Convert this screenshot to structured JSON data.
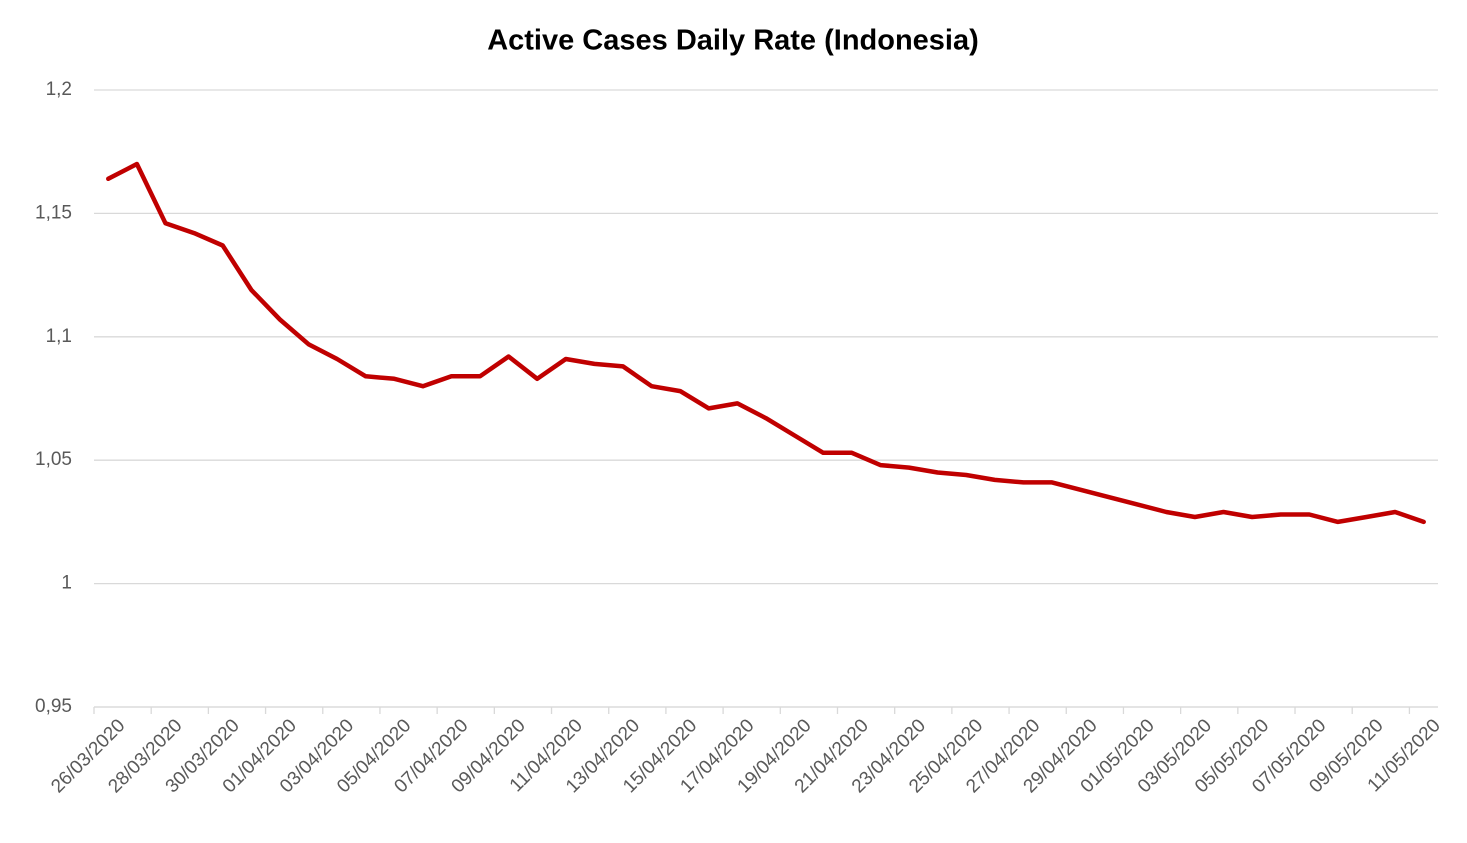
{
  "chart_data": {
    "type": "line",
    "title": "Active Cases Daily Rate (Indonesia)",
    "categories": [
      "26/03/2020",
      null,
      "28/03/2020",
      null,
      "30/03/2020",
      null,
      "01/04/2020",
      null,
      "03/04/2020",
      null,
      "05/04/2020",
      null,
      "07/04/2020",
      null,
      "09/04/2020",
      null,
      "11/04/2020",
      null,
      "13/04/2020",
      null,
      "15/04/2020",
      null,
      "17/04/2020",
      null,
      "19/04/2020",
      null,
      "21/04/2020",
      null,
      "23/04/2020",
      null,
      "25/04/2020",
      null,
      "27/04/2020",
      null,
      "29/04/2020",
      null,
      "01/05/2020",
      null,
      "03/05/2020",
      null,
      "05/05/2020",
      null,
      "07/05/2020",
      null,
      "09/05/2020",
      null,
      "11/05/2020"
    ],
    "series": [
      {
        "name": "Active Cases Daily Rate",
        "color": "#c00000",
        "values": [
          1.164,
          1.17,
          1.146,
          1.142,
          1.137,
          1.119,
          1.107,
          1.097,
          1.091,
          1.084,
          1.083,
          1.08,
          1.084,
          1.084,
          1.092,
          1.083,
          1.091,
          1.089,
          1.088,
          1.08,
          1.078,
          1.071,
          1.073,
          1.067,
          1.06,
          1.053,
          1.053,
          1.048,
          1.047,
          1.045,
          1.044,
          1.042,
          1.041,
          1.041,
          1.038,
          1.035,
          1.032,
          1.029,
          1.027,
          1.029,
          1.027,
          1.028,
          1.028,
          1.025,
          1.027,
          1.029,
          1.025
        ]
      }
    ],
    "ylim": [
      0.95,
      1.2
    ],
    "yticks": [
      {
        "value": 0.95,
        "label": "0,95"
      },
      1,
      {
        "value": 1.05,
        "label": "1,05"
      },
      {
        "value": 1.1,
        "label": "1,1"
      },
      {
        "value": 1.15,
        "label": "1,15"
      },
      {
        "value": 1.2,
        "label": "1,2"
      }
    ],
    "grid": true
  }
}
